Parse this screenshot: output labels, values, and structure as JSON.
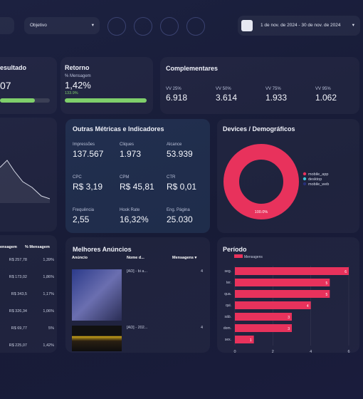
{
  "filters": {
    "objective": "Objetivo",
    "date_range": "1 de nov. de 2024 - 30 de nov. de 2024"
  },
  "resultado": {
    "title": "esultado",
    "value": "07"
  },
  "retorno": {
    "title": "Retorno",
    "metric": "% Mensagem",
    "value": "1,42%",
    "change": "133.9%"
  },
  "complementares": {
    "title": "Complementares",
    "items": [
      {
        "label": "VV 25%",
        "value": "6.918"
      },
      {
        "label": "VV 50%",
        "value": "3.614"
      },
      {
        "label": "VV 75%",
        "value": "1.933"
      },
      {
        "label": "VV 95%",
        "value": "1.062"
      }
    ]
  },
  "outras_metricas": {
    "title": "Outras Métricas e Indicadores",
    "items": [
      {
        "label": "Impressões",
        "value": "137.567"
      },
      {
        "label": "Cliques",
        "value": "1.973"
      },
      {
        "label": "Alcance",
        "value": "53.939"
      },
      {
        "label": "CPC",
        "value": "R$ 3,19"
      },
      {
        "label": "CPM",
        "value": "R$ 45,81"
      },
      {
        "label": "CTR",
        "value": "R$ 0,01"
      },
      {
        "label": "Frequência",
        "value": "2,55"
      },
      {
        "label": "Hook Rate",
        "value": "16,32%"
      },
      {
        "label": "Eng. Página",
        "value": "25.030"
      }
    ]
  },
  "devices": {
    "title": "Devices / Demográficos",
    "chart_data": {
      "type": "pie",
      "categories": [
        "mobile_app",
        "desktop",
        "mobile_web"
      ],
      "values": [
        100,
        0,
        0
      ],
      "value_labels": [
        "100.0%",
        null,
        null
      ],
      "colors": [
        "#e8325c",
        "#3ec4d6",
        "#27307a"
      ]
    }
  },
  "tabela": {
    "headers": [
      "ensagem",
      "% Mensagem"
    ],
    "rows": [
      [
        "R$ 257,78",
        "1,39%"
      ],
      [
        "R$ 173,02",
        "1,86%"
      ],
      [
        "R$ 343,5",
        "1,17%"
      ],
      [
        "R$ 326,34",
        "1,06%"
      ],
      [
        "R$ 69,77",
        "5%"
      ]
    ],
    "total": [
      "R$ 225,07",
      "1,42%"
    ]
  },
  "anuncios": {
    "title": "Melhores Anúncios",
    "headers": [
      "Anúncio",
      "Nome d...",
      "Mensagens ▾"
    ],
    "rows": [
      [
        "[AD] - bi a...",
        "4"
      ],
      [
        "[AD] - 202...",
        "4"
      ]
    ]
  },
  "periodo": {
    "title": "Período",
    "chart_data": {
      "type": "bar",
      "orientation": "horizontal",
      "categories": [
        "seg.",
        "ter.",
        "qua.",
        "qui.",
        "sáb.",
        "dom.",
        "sex."
      ],
      "series": [
        {
          "name": "Mensagens",
          "color": "#e8325c",
          "values": [
            6,
            5,
            5,
            4,
            3,
            3,
            1
          ]
        }
      ],
      "xlim": [
        0,
        6
      ],
      "xticks": [
        0,
        2,
        4,
        6
      ],
      "grid": true
    }
  }
}
